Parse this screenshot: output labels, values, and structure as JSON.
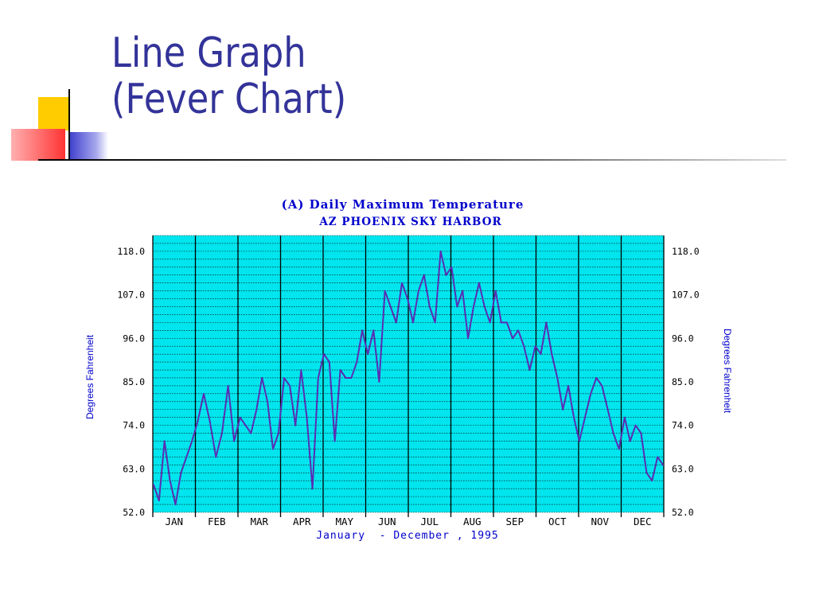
{
  "slide": {
    "title_line1": "Line Graph",
    "title_line2": "(Fever Chart)"
  },
  "colors": {
    "title": "#333399",
    "plot_background": "#00e5ee",
    "line": "#5a2db3",
    "text_blue": "#0000cc"
  },
  "chart_data": {
    "type": "line",
    "title": "(A) Daily Maximum Temperature",
    "subtitle": "AZ PHOENIX SKY HARBOR",
    "ylabel": "Degrees Fahrenheit",
    "xlabel": "January  - December , 1995",
    "ylim": [
      52.0,
      122.0
    ],
    "yticks": [
      "118.0",
      "107.0",
      "96.0",
      "85.0",
      "74.0",
      "63.0",
      "52.0"
    ],
    "months": [
      "JAN",
      "FEB",
      "MAR",
      "APR",
      "MAY",
      "JUN",
      "JUL",
      "AUG",
      "SEP",
      "OCT",
      "NOV",
      "DEC"
    ],
    "grid": true,
    "series": [
      {
        "x": [
          "Jan 1",
          "Jan 5",
          "Jan 9",
          "Jan 13",
          "Jan 17",
          "Jan 21",
          "Jan 25",
          "Jan 29",
          "Feb 2",
          "Feb 6",
          "Feb 10",
          "Feb 14",
          "Feb 18",
          "Feb 22",
          "Feb 26",
          "Mar 2",
          "Mar 6",
          "Mar 10",
          "Mar 14",
          "Mar 18",
          "Mar 22",
          "Mar 26",
          "Mar 30",
          "Apr 3",
          "Apr 7",
          "Apr 11",
          "Apr 15",
          "Apr 19",
          "Apr 23",
          "Apr 27",
          "May 1",
          "May 5",
          "May 9",
          "May 13",
          "May 17",
          "May 21",
          "May 25",
          "May 29",
          "Jun 2",
          "Jun 6",
          "Jun 10",
          "Jun 14",
          "Jun 18",
          "Jun 22",
          "Jun 26",
          "Jun 30",
          "Jul 4",
          "Jul 8",
          "Jul 12",
          "Jul 16",
          "Jul 20",
          "Jul 24",
          "Jul 28",
          "Aug 1",
          "Aug 5",
          "Aug 9",
          "Aug 13",
          "Aug 17",
          "Aug 21",
          "Aug 25",
          "Aug 29",
          "Sep 2",
          "Sep 6",
          "Sep 10",
          "Sep 14",
          "Sep 18",
          "Sep 22",
          "Sep 26",
          "Sep 30",
          "Oct 4",
          "Oct 8",
          "Oct 12",
          "Oct 16",
          "Oct 20",
          "Oct 24",
          "Oct 28",
          "Nov 1",
          "Nov 5",
          "Nov 9",
          "Nov 13",
          "Nov 17",
          "Nov 21",
          "Nov 25",
          "Nov 29",
          "Dec 3",
          "Dec 7",
          "Dec 11",
          "Dec 15",
          "Dec 19",
          "Dec 23",
          "Dec 27",
          "Dec 31"
        ],
        "values": [
          59,
          55,
          70,
          60,
          54,
          62,
          66,
          70,
          75,
          82,
          75,
          66,
          72,
          84,
          70,
          76,
          74,
          72,
          78,
          86,
          80,
          68,
          72,
          86,
          84,
          74,
          88,
          76,
          58,
          86,
          92,
          90,
          70,
          88,
          86,
          86,
          90,
          98,
          92,
          98,
          85,
          108,
          104,
          100,
          110,
          106,
          100,
          108,
          112,
          104,
          100,
          118,
          112,
          114,
          104,
          108,
          96,
          104,
          110,
          104,
          100,
          108,
          100,
          100,
          96,
          98,
          94,
          88,
          94,
          92,
          100,
          92,
          86,
          78,
          84,
          76,
          70,
          76,
          82,
          86,
          84,
          78,
          72,
          68,
          76,
          70,
          74,
          72,
          62,
          60,
          66,
          64
        ]
      }
    ]
  }
}
